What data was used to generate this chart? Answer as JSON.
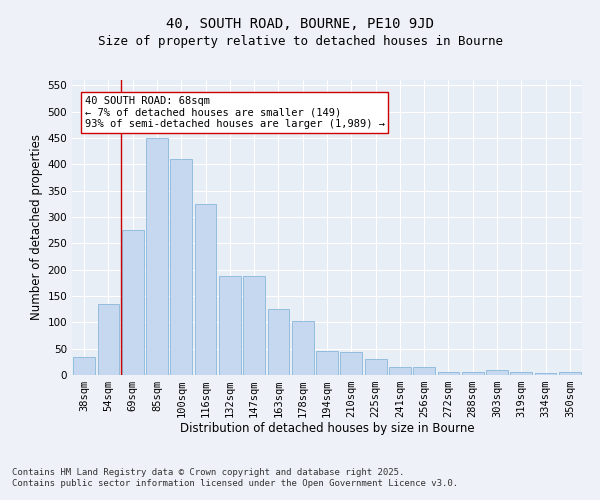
{
  "title_line1": "40, SOUTH ROAD, BOURNE, PE10 9JD",
  "title_line2": "Size of property relative to detached houses in Bourne",
  "xlabel": "Distribution of detached houses by size in Bourne",
  "ylabel": "Number of detached properties",
  "categories": [
    "38sqm",
    "54sqm",
    "69sqm",
    "85sqm",
    "100sqm",
    "116sqm",
    "132sqm",
    "147sqm",
    "163sqm",
    "178sqm",
    "194sqm",
    "210sqm",
    "225sqm",
    "241sqm",
    "256sqm",
    "272sqm",
    "288sqm",
    "303sqm",
    "319sqm",
    "334sqm",
    "350sqm"
  ],
  "values": [
    35,
    135,
    275,
    450,
    410,
    325,
    188,
    188,
    125,
    102,
    46,
    44,
    30,
    16,
    16,
    6,
    5,
    10,
    5,
    4,
    5
  ],
  "bar_color": "#c5d8f0",
  "bar_edge_color": "#7aaed6",
  "vline_color": "#cc0000",
  "vline_xindex": 1.5,
  "ylim": [
    0,
    560
  ],
  "yticks": [
    0,
    50,
    100,
    150,
    200,
    250,
    300,
    350,
    400,
    450,
    500,
    550
  ],
  "annotation_text": "40 SOUTH ROAD: 68sqm\n← 7% of detached houses are smaller (149)\n93% of semi-detached houses are larger (1,989) →",
  "annotation_box_edge": "#cc0000",
  "footer_line1": "Contains HM Land Registry data © Crown copyright and database right 2025.",
  "footer_line2": "Contains public sector information licensed under the Open Government Licence v3.0.",
  "bg_color": "#eef2f8",
  "plot_bg_color": "#e8eef6",
  "grid_color": "#ffffff",
  "title_fontsize": 10,
  "subtitle_fontsize": 9,
  "axis_label_fontsize": 8.5,
  "tick_fontsize": 7.5,
  "annotation_fontsize": 7.5,
  "footer_fontsize": 6.5
}
